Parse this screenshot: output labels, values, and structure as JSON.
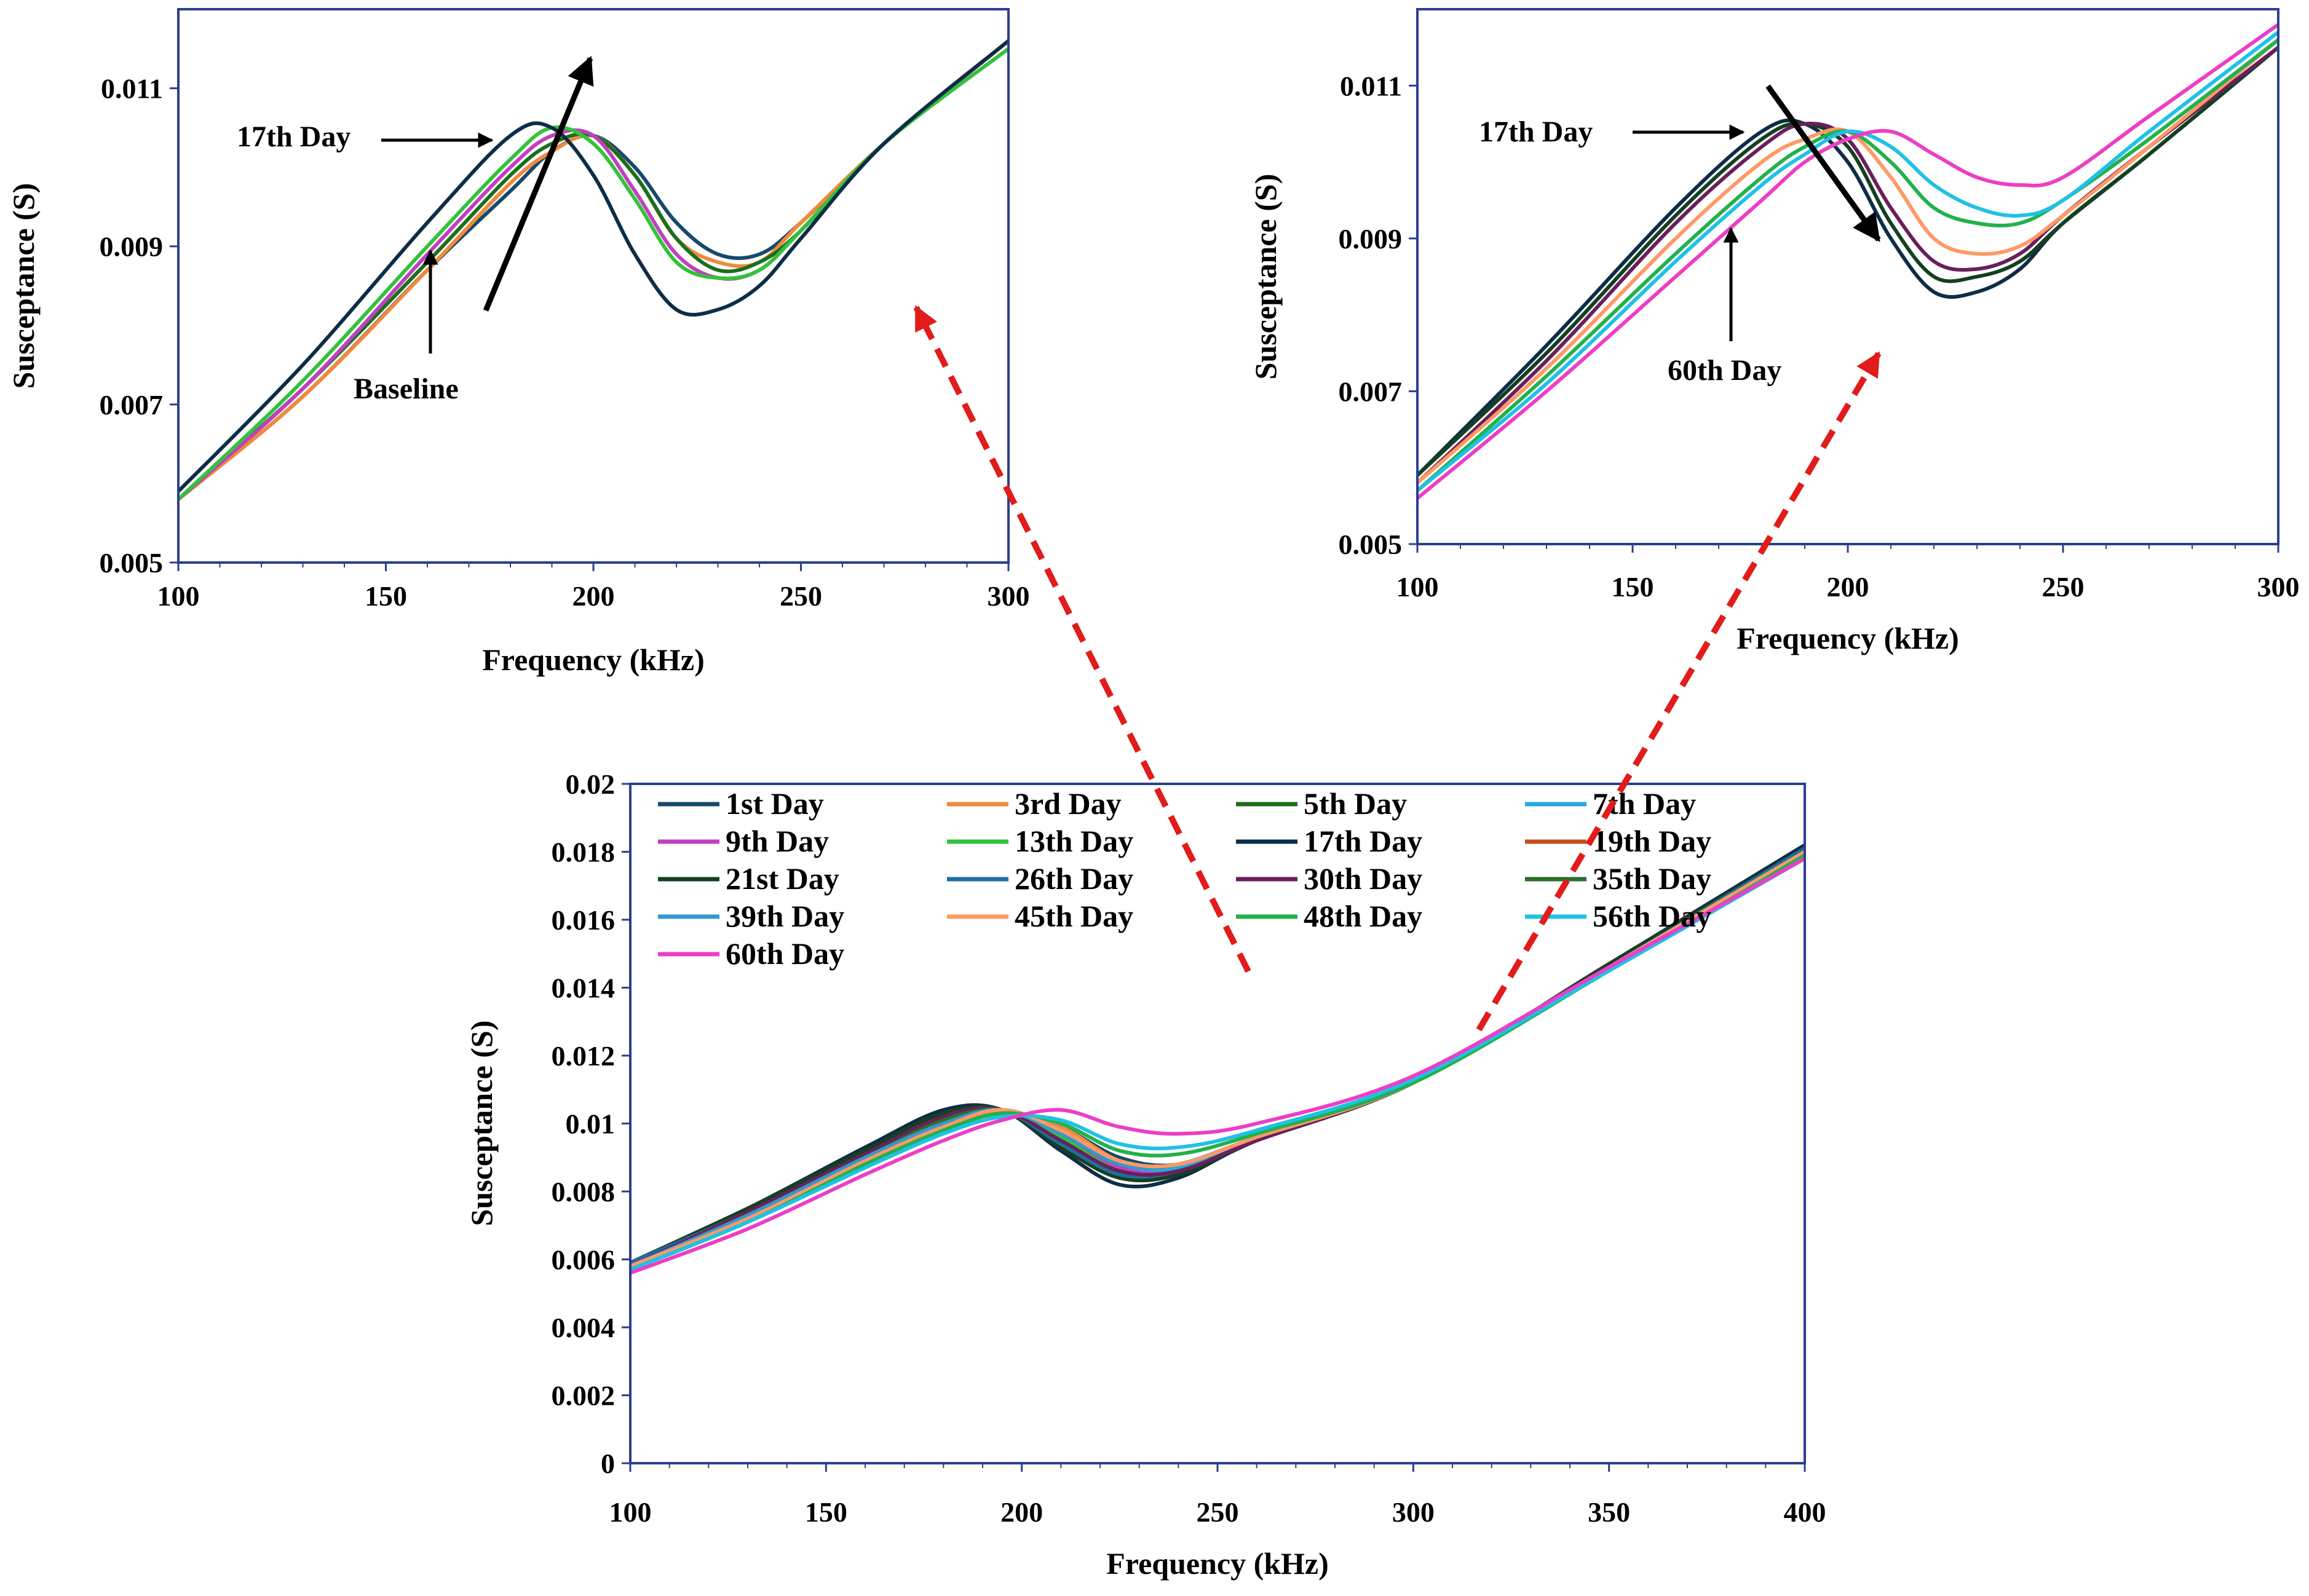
{
  "colors": {
    "axis_frame": "#2b3f8f",
    "annotation_arrow": "#000000",
    "link_arrow": "#e21b1b",
    "series": [
      "#17496b",
      "#f08a3c",
      "#1c6e1c",
      "#26a9e0",
      "#c040c0",
      "#33c23a",
      "#0d2d47",
      "#c0501a",
      "#14401f",
      "#1e6fa0",
      "#6a1f5c",
      "#2c6e2c",
      "#3399cc",
      "#ff9966",
      "#22b14c",
      "#1fc1e6",
      "#ec3ec6"
    ]
  },
  "chart_data": [
    {
      "id": "zoom-baseline",
      "type": "line",
      "title": "",
      "xlabel": "Frequency (kHz)",
      "ylabel": "Susceptance (S)",
      "xlim": [
        100,
        300
      ],
      "ylim": [
        0.005,
        0.012
      ],
      "xticks": [
        100,
        150,
        200,
        250,
        300
      ],
      "xtick_labels": [
        "100",
        "150",
        "200",
        "250",
        "300"
      ],
      "yticks": [
        0.005,
        0.007,
        0.009,
        0.011
      ],
      "ytick_labels": [
        "0.005",
        "0.007",
        "0.009",
        "0.011"
      ],
      "grid": false,
      "legend": false,
      "series": [
        {
          "name": "1st Day",
          "color_index": 0,
          "x": [
            100,
            130,
            160,
            180,
            190,
            200,
            210,
            220,
            230,
            240,
            250,
            270,
            300
          ],
          "y": [
            0.0058,
            0.0071,
            0.0087,
            0.0097,
            0.0102,
            0.0104,
            0.01,
            0.0093,
            0.0089,
            0.0089,
            0.0093,
            0.0103,
            0.0116
          ]
        },
        {
          "name": "3rd Day",
          "color_index": 1,
          "x": [
            100,
            130,
            160,
            180,
            190,
            200,
            210,
            220,
            230,
            240,
            250,
            270,
            300
          ],
          "y": [
            0.0058,
            0.0071,
            0.0087,
            0.0098,
            0.0102,
            0.0104,
            0.0099,
            0.0091,
            0.0088,
            0.0088,
            0.0093,
            0.0103,
            0.0116
          ]
        },
        {
          "name": "5th Day",
          "color_index": 2,
          "x": [
            100,
            130,
            160,
            180,
            190,
            200,
            210,
            220,
            230,
            240,
            250,
            270,
            300
          ],
          "y": [
            0.0058,
            0.0072,
            0.0088,
            0.0099,
            0.0103,
            0.0104,
            0.0099,
            0.0091,
            0.0087,
            0.0088,
            0.0092,
            0.0103,
            0.0116
          ]
        },
        {
          "name": "9th Day",
          "color_index": 4,
          "x": [
            100,
            130,
            160,
            180,
            190,
            200,
            210,
            220,
            230,
            240,
            250,
            270,
            300
          ],
          "y": [
            0.0058,
            0.0072,
            0.0089,
            0.01,
            0.0104,
            0.0104,
            0.0097,
            0.0089,
            0.0086,
            0.0087,
            0.0092,
            0.0103,
            0.0116
          ]
        },
        {
          "name": "13th Day",
          "color_index": 5,
          "x": [
            100,
            130,
            160,
            180,
            190,
            200,
            210,
            220,
            230,
            240,
            250,
            270,
            300
          ],
          "y": [
            0.0058,
            0.0073,
            0.009,
            0.0101,
            0.0105,
            0.0103,
            0.0096,
            0.0088,
            0.0086,
            0.0087,
            0.0092,
            0.0103,
            0.0115
          ]
        },
        {
          "name": "17th Day",
          "color_index": 6,
          "x": [
            100,
            130,
            160,
            180,
            190,
            200,
            210,
            220,
            230,
            240,
            250,
            270,
            300
          ],
          "y": [
            0.0059,
            0.0075,
            0.0093,
            0.0104,
            0.0105,
            0.0099,
            0.0089,
            0.0082,
            0.0082,
            0.0085,
            0.0091,
            0.0103,
            0.0116
          ]
        }
      ],
      "annotations": [
        {
          "text": "17th Day",
          "points_to": [
            175,
            0.0104
          ]
        },
        {
          "text": "Baseline",
          "points_to": [
            160,
            0.009
          ]
        }
      ]
    },
    {
      "id": "zoom-60th",
      "type": "line",
      "title": "",
      "xlabel": "Frequency (kHz)",
      "ylabel": "Susceptance (S)",
      "xlim": [
        100,
        300
      ],
      "ylim": [
        0.005,
        0.012
      ],
      "xticks": [
        100,
        150,
        200,
        250,
        300
      ],
      "xtick_labels": [
        "100",
        "150",
        "200",
        "250",
        "300"
      ],
      "yticks": [
        0.005,
        0.007,
        0.009,
        0.011
      ],
      "ytick_labels": [
        "0.005",
        "0.007",
        "0.009",
        "0.011"
      ],
      "grid": false,
      "legend": false,
      "series": [
        {
          "name": "17th Day",
          "color_index": 6,
          "x": [
            100,
            130,
            160,
            180,
            190,
            200,
            210,
            220,
            230,
            240,
            250,
            270,
            300
          ],
          "y": [
            0.0059,
            0.0076,
            0.0094,
            0.0104,
            0.0105,
            0.01,
            0.009,
            0.0083,
            0.0083,
            0.0086,
            0.0092,
            0.0101,
            0.0115
          ]
        },
        {
          "name": "21st Day",
          "color_index": 8,
          "x": [
            100,
            130,
            160,
            180,
            190,
            200,
            210,
            220,
            230,
            240,
            250,
            270,
            300
          ],
          "y": [
            0.0059,
            0.0075,
            0.0093,
            0.0103,
            0.0105,
            0.0102,
            0.0092,
            0.0085,
            0.0085,
            0.0087,
            0.0092,
            0.0101,
            0.0115
          ]
        },
        {
          "name": "30th Day",
          "color_index": 10,
          "x": [
            100,
            130,
            160,
            180,
            190,
            200,
            210,
            220,
            230,
            240,
            250,
            270,
            300
          ],
          "y": [
            0.0058,
            0.0074,
            0.0092,
            0.0102,
            0.0105,
            0.0103,
            0.0094,
            0.0087,
            0.0086,
            0.0088,
            0.0093,
            0.0102,
            0.0115
          ]
        },
        {
          "name": "45th Day",
          "color_index": 13,
          "x": [
            100,
            130,
            160,
            180,
            190,
            200,
            210,
            220,
            230,
            240,
            250,
            270,
            300
          ],
          "y": [
            0.0058,
            0.0073,
            0.009,
            0.01,
            0.0103,
            0.0104,
            0.0098,
            0.009,
            0.0088,
            0.0089,
            0.0093,
            0.0102,
            0.0116
          ]
        },
        {
          "name": "48th Day",
          "color_index": 14,
          "x": [
            100,
            130,
            160,
            180,
            190,
            200,
            210,
            220,
            230,
            240,
            250,
            270,
            300
          ],
          "y": [
            0.0057,
            0.0072,
            0.0088,
            0.0098,
            0.0102,
            0.0104,
            0.01,
            0.0094,
            0.0092,
            0.0092,
            0.0095,
            0.0103,
            0.0116
          ]
        },
        {
          "name": "56th Day",
          "color_index": 15,
          "x": [
            100,
            130,
            160,
            180,
            190,
            200,
            210,
            220,
            230,
            240,
            250,
            270,
            300
          ],
          "y": [
            0.0057,
            0.0071,
            0.0087,
            0.0097,
            0.0101,
            0.0104,
            0.0102,
            0.0097,
            0.0094,
            0.0093,
            0.0095,
            0.0104,
            0.0117
          ]
        },
        {
          "name": "60th Day",
          "color_index": 16,
          "x": [
            100,
            130,
            160,
            180,
            190,
            200,
            210,
            220,
            230,
            240,
            250,
            270,
            300
          ],
          "y": [
            0.0056,
            0.007,
            0.0085,
            0.0095,
            0.01,
            0.0103,
            0.0104,
            0.0101,
            0.0098,
            0.0097,
            0.0098,
            0.0106,
            0.0118
          ]
        }
      ],
      "annotations": [
        {
          "text": "17th Day",
          "points_to": [
            178,
            0.0104
          ]
        },
        {
          "text": "60th Day",
          "points_to": [
            178,
            0.0092
          ]
        }
      ]
    },
    {
      "id": "full-range",
      "type": "line",
      "title": "",
      "xlabel": "Frequency (kHz)",
      "ylabel": "Susceptance (S)",
      "xlim": [
        100,
        400
      ],
      "ylim": [
        0,
        0.02
      ],
      "xticks": [
        100,
        150,
        200,
        250,
        300,
        350,
        400
      ],
      "xtick_labels": [
        "100",
        "150",
        "200",
        "250",
        "300",
        "350",
        "400"
      ],
      "yticks": [
        0,
        0.002,
        0.004,
        0.006,
        0.008,
        0.01,
        0.012,
        0.014,
        0.016,
        0.018,
        0.02
      ],
      "ytick_labels": [
        "0",
        "0.002",
        "0.004",
        "0.006",
        "0.008",
        "0.01",
        "0.012",
        "0.014",
        "0.016",
        "0.018",
        "0.02"
      ],
      "grid": false,
      "legend": true,
      "legend_position": "top",
      "legend_entries": [
        "1st Day",
        "3rd Day",
        "5th Day",
        "7th Day",
        "9th Day",
        "13th Day",
        "17th Day",
        "19th Day",
        "21st Day",
        "26th Day",
        "30th Day",
        "35th Day",
        "39th Day",
        "45th Day",
        "48th Day",
        "56th Day",
        "60th Day"
      ],
      "x": [
        100,
        130,
        160,
        180,
        195,
        210,
        225,
        240,
        260,
        300,
        350,
        400
      ],
      "series": [
        {
          "name": "1st Day",
          "y": [
            0.0058,
            0.0072,
            0.0088,
            0.0098,
            0.0103,
            0.0099,
            0.009,
            0.0088,
            0.0096,
            0.0112,
            0.0146,
            0.018
          ]
        },
        {
          "name": "3rd Day",
          "y": [
            0.0058,
            0.0072,
            0.0088,
            0.0098,
            0.0103,
            0.0099,
            0.0089,
            0.0087,
            0.0096,
            0.0112,
            0.0146,
            0.018
          ]
        },
        {
          "name": "5th Day",
          "y": [
            0.0058,
            0.0072,
            0.0089,
            0.0099,
            0.0104,
            0.0098,
            0.0088,
            0.0087,
            0.0096,
            0.0112,
            0.0146,
            0.018
          ]
        },
        {
          "name": "7th Day",
          "y": [
            0.0058,
            0.0072,
            0.0089,
            0.0099,
            0.0104,
            0.0098,
            0.0088,
            0.0087,
            0.0096,
            0.0112,
            0.0146,
            0.018
          ]
        },
        {
          "name": "9th Day",
          "y": [
            0.0058,
            0.0073,
            0.009,
            0.01,
            0.0104,
            0.0097,
            0.0087,
            0.0086,
            0.0095,
            0.0112,
            0.0146,
            0.018
          ]
        },
        {
          "name": "13th Day",
          "y": [
            0.0058,
            0.0073,
            0.009,
            0.0101,
            0.0104,
            0.0096,
            0.0086,
            0.0086,
            0.0095,
            0.0112,
            0.0146,
            0.018
          ]
        },
        {
          "name": "17th Day",
          "y": [
            0.0059,
            0.0075,
            0.0093,
            0.0104,
            0.0104,
            0.0092,
            0.0082,
            0.0084,
            0.0095,
            0.0112,
            0.0147,
            0.0182
          ]
        },
        {
          "name": "19th Day",
          "y": [
            0.0059,
            0.0075,
            0.0092,
            0.0103,
            0.0104,
            0.0093,
            0.0084,
            0.0085,
            0.0095,
            0.0112,
            0.0147,
            0.0181
          ]
        },
        {
          "name": "21st Day",
          "y": [
            0.0059,
            0.0075,
            0.0092,
            0.0103,
            0.0104,
            0.0093,
            0.0084,
            0.0085,
            0.0095,
            0.0112,
            0.0147,
            0.0181
          ]
        },
        {
          "name": "26th Day",
          "y": [
            0.0059,
            0.0074,
            0.0091,
            0.0102,
            0.0104,
            0.0094,
            0.0085,
            0.0086,
            0.0095,
            0.0112,
            0.0146,
            0.0181
          ]
        },
        {
          "name": "30th Day",
          "y": [
            0.0058,
            0.0074,
            0.0091,
            0.0102,
            0.0104,
            0.0095,
            0.0086,
            0.0086,
            0.0095,
            0.0112,
            0.0146,
            0.018
          ]
        },
        {
          "name": "35th Day",
          "y": [
            0.0058,
            0.0073,
            0.009,
            0.0101,
            0.0104,
            0.0097,
            0.0088,
            0.0088,
            0.0096,
            0.0112,
            0.0146,
            0.018
          ]
        },
        {
          "name": "39th Day",
          "y": [
            0.0058,
            0.0073,
            0.009,
            0.01,
            0.0104,
            0.0097,
            0.0088,
            0.0088,
            0.0096,
            0.0112,
            0.0146,
            0.018
          ]
        },
        {
          "name": "45th Day",
          "y": [
            0.0058,
            0.0072,
            0.0089,
            0.0099,
            0.0104,
            0.0098,
            0.0089,
            0.0088,
            0.0096,
            0.0112,
            0.0146,
            0.018
          ]
        },
        {
          "name": "48th Day",
          "y": [
            0.0057,
            0.0071,
            0.0088,
            0.0098,
            0.0103,
            0.01,
            0.0092,
            0.0091,
            0.0097,
            0.0112,
            0.0145,
            0.0179
          ]
        },
        {
          "name": "56th Day",
          "y": [
            0.0057,
            0.0071,
            0.0087,
            0.0097,
            0.0102,
            0.0101,
            0.0094,
            0.0093,
            0.0098,
            0.0113,
            0.0145,
            0.0178
          ]
        },
        {
          "name": "60th Day",
          "y": [
            0.0056,
            0.0069,
            0.0085,
            0.0095,
            0.0101,
            0.0104,
            0.0099,
            0.0097,
            0.01,
            0.0114,
            0.0146,
            0.0178
          ]
        }
      ]
    }
  ]
}
